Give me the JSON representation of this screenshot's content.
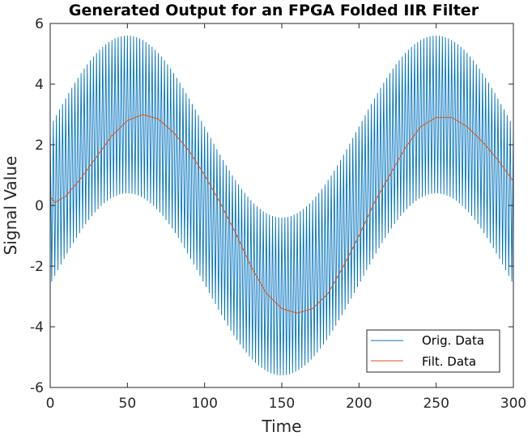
{
  "chart_data": {
    "type": "line",
    "title": "Generated Output for an FPGA Folded IIR Filter",
    "xlabel": "Time",
    "ylabel": "Signal Value",
    "xlim": [
      0,
      300
    ],
    "ylim": [
      -6,
      6
    ],
    "xticks": [
      "0",
      "50",
      "100",
      "150",
      "200",
      "250",
      "300"
    ],
    "yticks": [
      "-6",
      "-4",
      "-2",
      "0",
      "2",
      "4",
      "6"
    ],
    "grid": false,
    "legend_position": "bottom-right",
    "series": [
      {
        "name": "Orig. Data",
        "color": "#0072BD",
        "formula": "3*sin(2*pi*t/200) + 2.6*cos(pi*t)",
        "x_range": [
          0,
          300
        ],
        "step": 1,
        "sample_points": [
          [
            0,
            2.6
          ],
          [
            1,
            -2.5
          ],
          [
            25,
            4.7
          ],
          [
            50,
            5.6
          ],
          [
            51,
            0.4
          ],
          [
            100,
            2.6
          ],
          [
            150,
            -0.4
          ],
          [
            151,
            -5.6
          ],
          [
            200,
            2.6
          ],
          [
            250,
            5.6
          ],
          [
            251,
            0.4
          ],
          [
            300,
            -1.5
          ]
        ]
      },
      {
        "name": "Filt. Data",
        "color": "#D95319",
        "x_range": [
          0,
          300
        ],
        "points": [
          [
            0,
            0.3
          ],
          [
            3,
            0.1
          ],
          [
            10,
            0.3
          ],
          [
            20,
            0.9
          ],
          [
            30,
            1.6
          ],
          [
            40,
            2.3
          ],
          [
            50,
            2.8
          ],
          [
            60,
            3.0
          ],
          [
            70,
            2.85
          ],
          [
            80,
            2.4
          ],
          [
            90,
            1.8
          ],
          [
            100,
            1.0
          ],
          [
            110,
            0.1
          ],
          [
            120,
            -0.9
          ],
          [
            130,
            -2.0
          ],
          [
            140,
            -2.9
          ],
          [
            150,
            -3.4
          ],
          [
            160,
            -3.55
          ],
          [
            170,
            -3.4
          ],
          [
            180,
            -2.9
          ],
          [
            190,
            -2.0
          ],
          [
            200,
            -1.0
          ],
          [
            210,
            0.1
          ],
          [
            220,
            1.0
          ],
          [
            230,
            1.9
          ],
          [
            240,
            2.6
          ],
          [
            250,
            2.9
          ],
          [
            260,
            2.9
          ],
          [
            270,
            2.6
          ],
          [
            280,
            2.1
          ],
          [
            290,
            1.5
          ],
          [
            300,
            0.8
          ]
        ]
      }
    ]
  }
}
